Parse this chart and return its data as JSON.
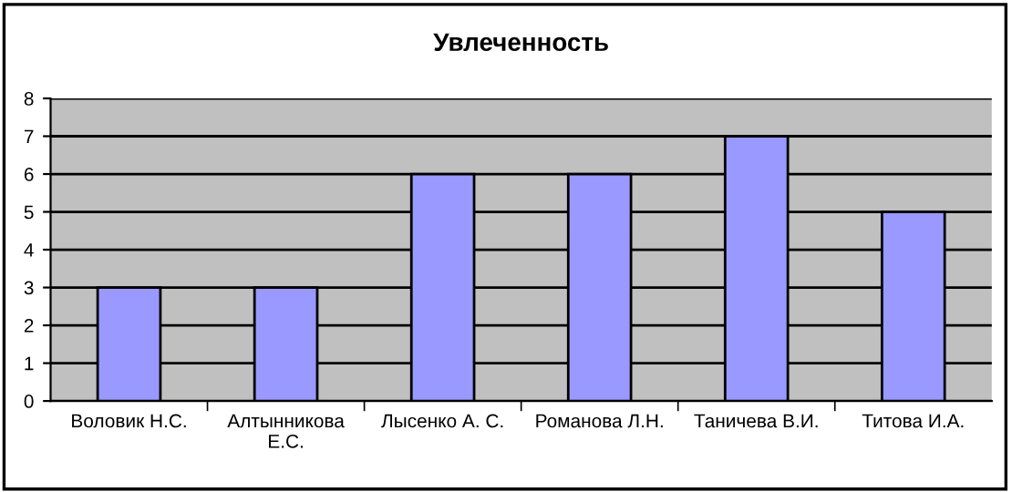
{
  "chart_data": {
    "type": "bar",
    "title": "Увлеченность",
    "categories": [
      "Воловик Н.С.",
      "Алтынникова Е.С.",
      "Лысенко А. С.",
      "Романова Л.Н.",
      "Таничева В.И.",
      "Титова И.А."
    ],
    "values": [
      3,
      3,
      6,
      6,
      7,
      5
    ],
    "color": "#9999ff",
    "ylim": [
      0,
      8
    ],
    "yticks": [
      0,
      1,
      2,
      3,
      4,
      5,
      6,
      7,
      8
    ],
    "grid": "y",
    "legend": false
  }
}
